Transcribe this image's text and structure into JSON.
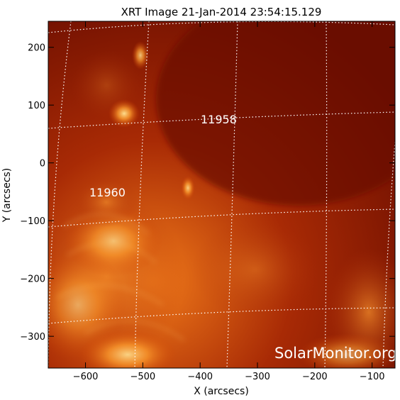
{
  "title": "XRT Image 21-Jan-2014 23:54:15.129",
  "xlabel": "X (arcsecs)",
  "ylabel": "Y (arcsecs)",
  "watermark": "SolarMonitor.org",
  "axes": {
    "x_ticks": [
      "-600",
      "-500",
      "-400",
      "-300",
      "-200",
      "-100"
    ],
    "y_ticks": [
      "200",
      "100",
      "0",
      "-100",
      "-200",
      "-300"
    ],
    "xlim": [
      -665,
      -60
    ],
    "ylim": [
      -355,
      245
    ]
  },
  "regions": [
    {
      "label": "11958",
      "x": -365,
      "y": 75
    },
    {
      "label": "11960",
      "x": -580,
      "y": -50
    }
  ],
  "colors": {
    "background": "#7a1000",
    "bright": "#ffd070",
    "grid": "#ffffff",
    "text_overlay": "#ffffff"
  }
}
